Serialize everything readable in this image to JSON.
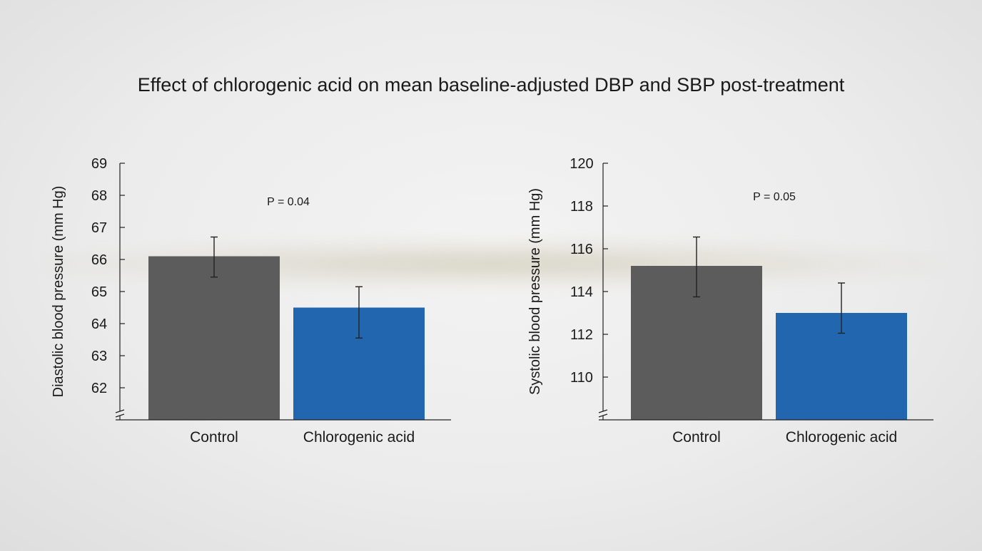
{
  "title": "Effect of chlorogenic acid on mean baseline-adjusted DBP and SBP post-treatment",
  "colors": {
    "control": "#5c5c5c",
    "chlorogenic": "#2266b0",
    "axis": "#222222"
  },
  "chart_data": [
    {
      "type": "bar",
      "categories": [
        "Control",
        "Chlorogenic acid"
      ],
      "values": [
        66.1,
        64.5
      ],
      "error_low": [
        65.45,
        63.55
      ],
      "error_high": [
        66.7,
        65.15
      ],
      "ylabel": "Diastolic blood pressure (mm Hg)",
      "ylim": [
        61,
        69
      ],
      "yticks": [
        62,
        63,
        64,
        65,
        66,
        67,
        68,
        69
      ],
      "ytick_labels": [
        "62",
        "63",
        "64",
        "65",
        "66",
        "67",
        "68",
        "69"
      ],
      "axis_break": true,
      "annotation": "P = 0.04"
    },
    {
      "type": "bar",
      "categories": [
        "Control",
        "Chlorogenic acid"
      ],
      "values": [
        115.2,
        113.0
      ],
      "error_low": [
        113.75,
        112.05
      ],
      "error_high": [
        116.55,
        114.4
      ],
      "ylabel": "Systolic blood pressure (mm Hg)",
      "ylim": [
        108,
        120
      ],
      "yticks": [
        110,
        112,
        114,
        116,
        118,
        120
      ],
      "ytick_labels": [
        "110",
        "112",
        "114",
        "116",
        "118",
        "120"
      ],
      "axis_break": true,
      "annotation": "P = 0.05"
    }
  ]
}
